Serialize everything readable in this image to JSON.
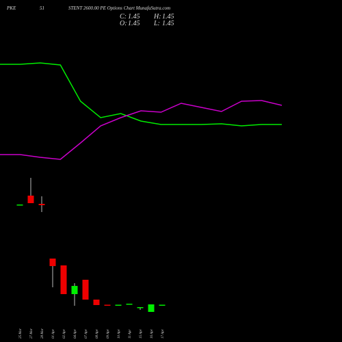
{
  "header": {
    "title_parts": [
      "PKE",
      "51",
      "STENT 2600.00 PE Options Chart MunafaSutra.com"
    ],
    "ohlc": [
      {
        "label": "C:",
        "value": 1.45
      },
      {
        "label": "H:",
        "value": 1.45
      },
      {
        "label": "O:",
        "value": 1.45
      },
      {
        "label": "L:",
        "value": 1.45
      }
    ]
  },
  "chart_data": [
    {
      "type": "line",
      "categories": [
        null,
        null,
        null,
        null,
        null,
        null,
        null,
        null,
        null,
        null,
        null,
        null,
        null,
        null,
        null
      ],
      "ylim": [
        0,
        300
      ],
      "series": [
        {
          "color": "#00ee00",
          "values": [
            206,
            206,
            208,
            205,
            152,
            128,
            134,
            123,
            118,
            118,
            118,
            119,
            116,
            118,
            118
          ]
        },
        {
          "color": "#cc00cc",
          "values": [
            74,
            74,
            70,
            67,
            91,
            116,
            128,
            138,
            136,
            149,
            143,
            137,
            152,
            153,
            146
          ]
        }
      ]
    },
    {
      "type": "candlestick",
      "categories": [
        "25 Mar",
        "27 Mar",
        "28 Mar",
        "01 Apr",
        "02 Apr",
        "04 Apr",
        "07 Apr",
        "08 Apr",
        "09 Apr",
        "10 Apr",
        "11 Apr",
        "15 Apr",
        "16 Apr",
        "17 Apr"
      ],
      "ylim": [
        0,
        25
      ],
      "up_color": "#00ee00",
      "down_color": "#ee0000",
      "open": [
        16.1,
        17.4,
        16.2,
        8.2,
        7.2,
        3.0,
        5.1,
        2.2,
        1.45,
        1.4,
        1.6,
        1.1,
        0.4,
        1.45
      ],
      "high": [
        16.1,
        20.0,
        17.3,
        8.2,
        7.2,
        4.6,
        5.1,
        2.2,
        1.45,
        1.45,
        1.6,
        1.1,
        1.5,
        1.45
      ],
      "low": [
        16.1,
        16.3,
        15.0,
        4.0,
        3.0,
        1.3,
        2.2,
        1.4,
        1.4,
        1.4,
        1.6,
        0.7,
        0.4,
        1.45
      ],
      "close": [
        16.1,
        16.3,
        16.0,
        7.1,
        3.0,
        4.2,
        2.2,
        1.4,
        1.4,
        1.45,
        1.6,
        1.1,
        1.5,
        1.45
      ]
    }
  ]
}
